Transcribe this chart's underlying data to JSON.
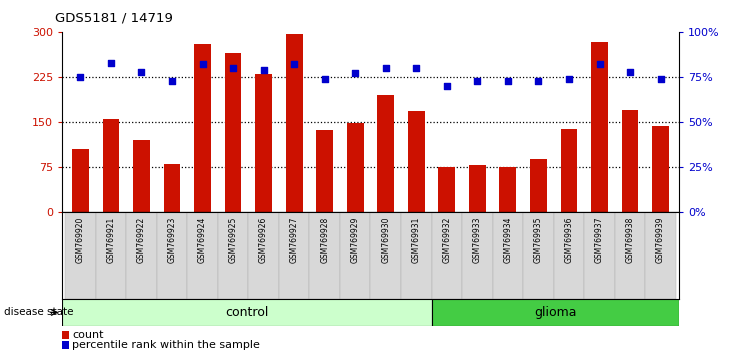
{
  "title": "GDS5181 / 14719",
  "samples": [
    "GSM769920",
    "GSM769921",
    "GSM769922",
    "GSM769923",
    "GSM769924",
    "GSM769925",
    "GSM769926",
    "GSM769927",
    "GSM769928",
    "GSM769929",
    "GSM769930",
    "GSM769931",
    "GSM769932",
    "GSM769933",
    "GSM769934",
    "GSM769935",
    "GSM769936",
    "GSM769937",
    "GSM769938",
    "GSM769939"
  ],
  "counts": [
    105,
    155,
    120,
    80,
    280,
    265,
    230,
    297,
    137,
    148,
    195,
    168,
    76,
    78,
    76,
    88,
    138,
    283,
    170,
    143
  ],
  "percentile_ranks": [
    75,
    83,
    78,
    73,
    82,
    80,
    79,
    82,
    74,
    77,
    80,
    80,
    70,
    73,
    73,
    73,
    74,
    82,
    78,
    74
  ],
  "control_count": 12,
  "glioma_count": 8,
  "bar_color": "#cc1100",
  "dot_color": "#0000cc",
  "control_color_light": "#ccffcc",
  "control_color_border": "#66bb66",
  "glioma_color": "#44cc44",
  "glioma_color_border": "#22aa22",
  "left_ylim": [
    0,
    300
  ],
  "right_ylim": [
    0,
    100
  ],
  "left_yticks": [
    0,
    75,
    150,
    225,
    300
  ],
  "right_yticks": [
    0,
    25,
    50,
    75,
    100
  ],
  "right_yticklabels": [
    "0%",
    "25%",
    "50%",
    "75%",
    "100%"
  ],
  "dotted_line_values": [
    75,
    150,
    225
  ],
  "bar_width": 0.55,
  "disease_state_label": "disease state",
  "control_label": "control",
  "glioma_label": "glioma",
  "legend_count": "count",
  "legend_percentile": "percentile rank within the sample",
  "tick_gray": "#cccccc",
  "spine_color": "#000000"
}
